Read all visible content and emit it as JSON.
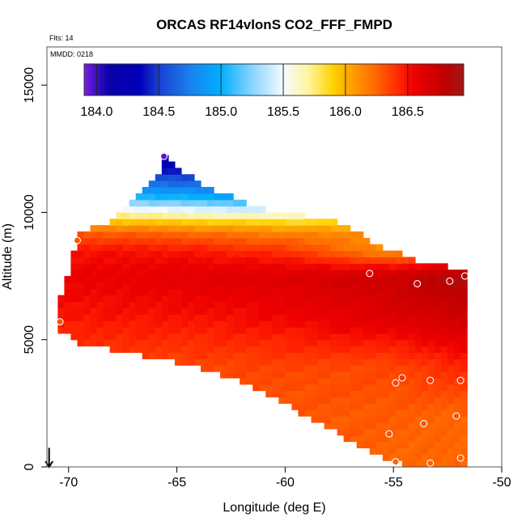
{
  "chart_data": {
    "type": "heatmap",
    "title": "ORCAS RF14vlonS CO2_FFF_FMPD",
    "flights_label": "Flts: 14",
    "date_label": "MMDD: 0218",
    "xlabel": "Longitude (deg E)",
    "ylabel": "Altitude (m)",
    "xlim": [
      -71,
      -50
    ],
    "ylim": [
      0,
      16500
    ],
    "x_ticks": [
      -70,
      -65,
      -60,
      -55,
      -50
    ],
    "x_tick_labels": [
      "-70",
      "-65",
      "-60",
      "-55",
      "-50"
    ],
    "y_ticks": [
      0,
      5000,
      10000,
      15000
    ],
    "y_tick_labels": [
      "0",
      "5000",
      "10000",
      "15000"
    ],
    "colorbar": {
      "min": 183.9,
      "max": 186.95,
      "ticks": [
        184.0,
        184.5,
        185.0,
        185.5,
        186.0,
        186.5
      ],
      "tick_labels": [
        "184.0",
        "184.5",
        "185.0",
        "185.5",
        "186.0",
        "186.5"
      ],
      "stops": [
        [
          183.9,
          "#7a1fe0"
        ],
        [
          184.0,
          "#3a10c8"
        ],
        [
          184.1,
          "#0a00a8"
        ],
        [
          184.35,
          "#0000b8"
        ],
        [
          184.5,
          "#1840d0"
        ],
        [
          184.75,
          "#1a80f0"
        ],
        [
          185.0,
          "#00b0ff"
        ],
        [
          185.25,
          "#8ad4ff"
        ],
        [
          185.5,
          "#f4fbff"
        ],
        [
          185.7,
          "#fff4a0"
        ],
        [
          185.9,
          "#ffd200"
        ],
        [
          186.05,
          "#ffa000"
        ],
        [
          186.25,
          "#ff6600"
        ],
        [
          186.45,
          "#ff2000"
        ],
        [
          186.55,
          "#ee0000"
        ],
        [
          186.8,
          "#c00000"
        ],
        [
          186.95,
          "#a01818"
        ]
      ]
    },
    "grid_domain": {
      "lon_min": -70.5,
      "lon_max": -51.7,
      "lon_step": 0.3,
      "alt_step": 250,
      "bottom": [
        [
          -70.5,
          5500
        ],
        [
          -69.5,
          5000
        ],
        [
          -66.5,
          4500
        ],
        [
          -63,
          3800
        ],
        [
          -60,
          2600
        ],
        [
          -57.5,
          1400
        ],
        [
          -55,
          300
        ],
        [
          -52,
          0
        ],
        [
          -51.7,
          0
        ]
      ],
      "top": [
        [
          -70.5,
          6200
        ],
        [
          -69.5,
          9000
        ],
        [
          -68,
          9600
        ],
        [
          -66,
          11200
        ],
        [
          -65.5,
          12100
        ],
        [
          -64,
          11000
        ],
        [
          -61,
          10000
        ],
        [
          -57.5,
          9500
        ],
        [
          -55.5,
          8500
        ],
        [
          -54,
          8000
        ],
        [
          -51.7,
          7600
        ]
      ]
    },
    "field_anchors": {
      "lons": [
        -70.5,
        -65,
        -60,
        -55,
        -51.7
      ],
      "alts": [
        0,
        2000,
        4000,
        6000,
        7500,
        8500,
        9200,
        9600,
        10000,
        10500,
        11000,
        12000
      ],
      "values": [
        [
          186.3,
          186.3,
          186.3,
          186.25,
          186.25
        ],
        [
          186.3,
          186.3,
          186.3,
          186.28,
          186.25
        ],
        [
          186.35,
          186.35,
          186.35,
          186.35,
          186.45
        ],
        [
          186.5,
          186.5,
          186.55,
          186.65,
          186.75
        ],
        [
          186.55,
          186.6,
          186.65,
          186.75,
          186.9
        ],
        [
          186.5,
          186.5,
          186.4,
          186.1,
          186.2
        ],
        [
          186.3,
          186.25,
          186.15,
          186.1,
          186.1
        ],
        [
          186.0,
          185.95,
          185.9,
          185.9,
          185.9
        ],
        [
          185.7,
          185.6,
          185.5,
          185.45,
          185.4
        ],
        [
          185.2,
          185.1,
          185.0,
          185.0,
          185.0
        ],
        [
          184.9,
          184.75,
          184.6,
          184.6,
          184.6
        ],
        [
          184.25,
          184.2,
          184.2,
          184.2,
          184.2
        ]
      ]
    },
    "observations": [
      {
        "lon": -70.4,
        "alt": 5700,
        "value": 186.3
      },
      {
        "lon": -69.6,
        "alt": 8900,
        "value": 186.3
      },
      {
        "lon": -65.6,
        "alt": 12200,
        "value": 183.95
      },
      {
        "lon": -56.1,
        "alt": 7600,
        "value": 186.55
      },
      {
        "lon": -53.9,
        "alt": 7200,
        "value": 186.6
      },
      {
        "lon": -52.4,
        "alt": 7300,
        "value": 186.75
      },
      {
        "lon": -51.7,
        "alt": 7500,
        "value": 186.9
      },
      {
        "lon": -54.6,
        "alt": 3500,
        "value": 186.4
      },
      {
        "lon": -54.9,
        "alt": 3300,
        "value": 186.35
      },
      {
        "lon": -53.3,
        "alt": 3400,
        "value": 186.4
      },
      {
        "lon": -51.9,
        "alt": 3400,
        "value": 186.4
      },
      {
        "lon": -53.6,
        "alt": 1700,
        "value": 186.3
      },
      {
        "lon": -52.1,
        "alt": 2000,
        "value": 186.3
      },
      {
        "lon": -55.2,
        "alt": 1300,
        "value": 186.3
      },
      {
        "lon": -54.9,
        "alt": 200,
        "value": 186.25
      },
      {
        "lon": -53.3,
        "alt": 150,
        "value": 186.25
      },
      {
        "lon": -51.9,
        "alt": 350,
        "value": 186.25
      }
    ],
    "wind_arrow": {
      "lon": -70.9,
      "alt_start": 750,
      "alt_end": 0
    }
  }
}
